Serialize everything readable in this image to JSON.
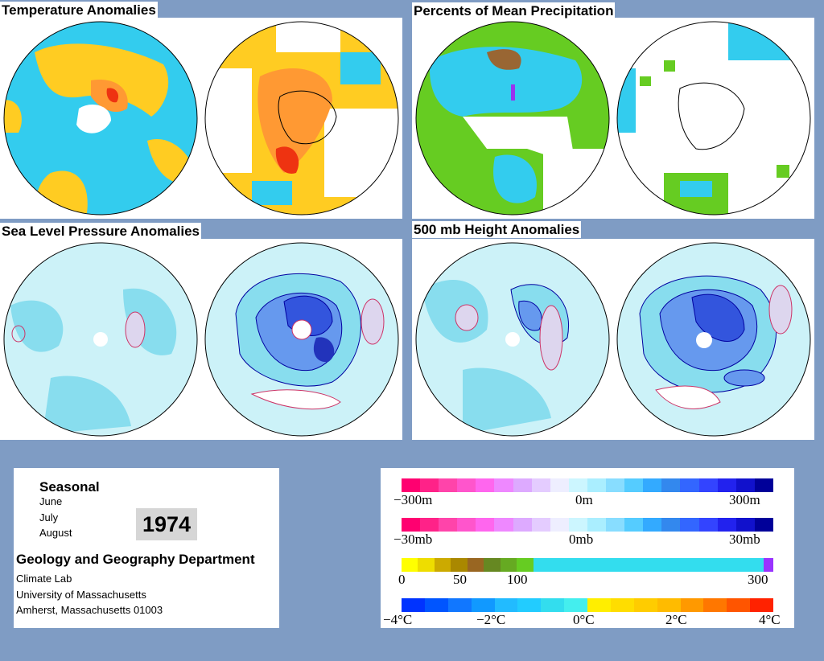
{
  "panels": {
    "temperature": {
      "title": "Temperature Anomalies"
    },
    "precipitation": {
      "title": "Percents of Mean Precipitation"
    },
    "slp": {
      "title": "Sea Level Pressure Anomalies"
    },
    "height": {
      "title": "500 mb Height Anomalies"
    }
  },
  "info": {
    "period": "Seasonal",
    "months": [
      "June",
      "July",
      "August"
    ],
    "year": "1974",
    "department": "Geology and Geography Department",
    "lines": [
      "Climate Lab",
      "University of Massachusetts",
      "Amherst, Massachusetts 01003"
    ]
  },
  "legend": {
    "height": {
      "min": "−300m",
      "mid": "0m",
      "max": "300m"
    },
    "pressure": {
      "min": "−30mb",
      "mid": "0mb",
      "max": "30mb"
    },
    "precip": {
      "t0": "0",
      "t1": "50",
      "t2": "100",
      "t3": "300"
    },
    "temp": {
      "t0": "−4°C",
      "t1": "−2°C",
      "t2": "0°C",
      "t3": "2°C",
      "t4": "4°C"
    }
  },
  "colors": {
    "background": "#7f9cc4",
    "anomaly_negative": "#ff0090",
    "anomaly_positive": "#0000a0",
    "precip_low": "#ffff00",
    "precip_high": "#a000ff",
    "temp_cold": "#0030ff",
    "temp_warm": "#ff2000"
  }
}
